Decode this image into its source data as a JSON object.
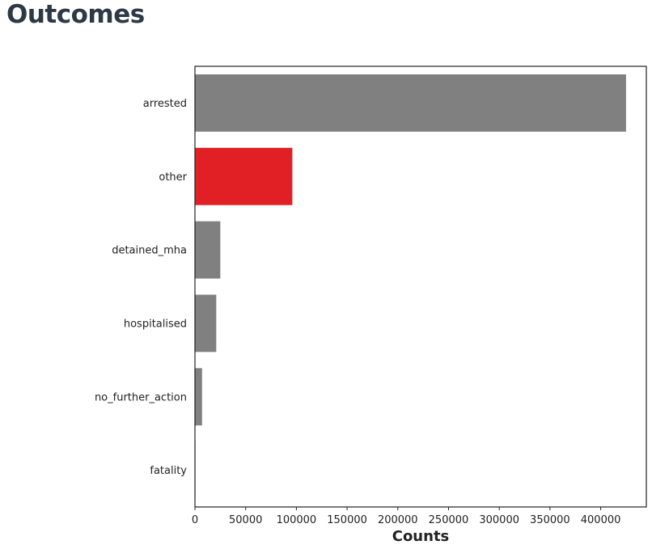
{
  "page": {
    "title": "Outcomes"
  },
  "chart_data": {
    "type": "bar",
    "orientation": "horizontal",
    "categories": [
      "arrested",
      "other",
      "detained_mha",
      "hospitalised",
      "no_further_action",
      "fatality"
    ],
    "values": [
      425000,
      96000,
      25000,
      21000,
      7000,
      500
    ],
    "bar_colors": [
      "#808080",
      "#e02024",
      "#808080",
      "#808080",
      "#808080",
      "#808080"
    ],
    "xlabel": "Counts",
    "ylabel": "",
    "xlim": [
      0,
      445000
    ],
    "x_ticks": [
      0,
      50000,
      100000,
      150000,
      200000,
      250000,
      300000,
      350000,
      400000
    ],
    "grid": false,
    "legend": "none"
  }
}
